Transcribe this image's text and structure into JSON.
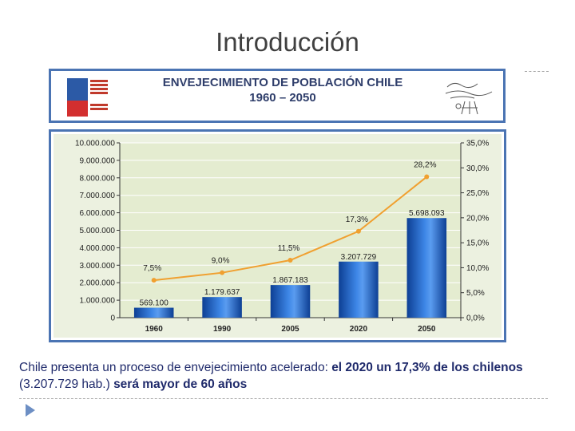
{
  "slide": {
    "title": "Introducción"
  },
  "header": {
    "title_line1": "ENVEJECIMIENTO DE POBLACIÓN CHILE",
    "title_line2": "1960 – 2050",
    "gov_logo": "government-of-chile-logo",
    "geriatria_logo": "geriatria-logo"
  },
  "chart_data": {
    "type": "bar",
    "title": "ENVEJECIMIENTO DE POBLACIÓN CHILE 1960 – 2050",
    "categories": [
      "1960",
      "1990",
      "2005",
      "2020",
      "2050"
    ],
    "series": [
      {
        "values": [
          569100,
          1179637,
          1867183,
          3207729,
          5698093
        ],
        "value_labels": [
          "569.100",
          "1.179.637",
          "1.867.183",
          "3.207.729",
          "5.698.093"
        ],
        "color": "#1f5fbf"
      },
      {
        "type": "line",
        "values": [
          7.5,
          9.0,
          11.5,
          17.3,
          28.2
        ],
        "value_labels": [
          "7,5%",
          "9,0%",
          "11,5%",
          "17,3%",
          "28,2%"
        ],
        "color": "#f0a030",
        "axis": "right"
      }
    ],
    "y_left": {
      "ylim": [
        0,
        10000000
      ],
      "tick_labels": [
        "0",
        "1.000.000",
        "2.000.000",
        "3.000.000",
        "4.000.000",
        "5.000.000",
        "6.000.000",
        "7.000.000",
        "8.000.000",
        "9.000.000",
        "10.000.000"
      ]
    },
    "y_right": {
      "ylim": [
        0,
        35
      ],
      "tick_labels": [
        "0,0%",
        "5,0%",
        "10,0%",
        "15,0%",
        "20,0%",
        "25,0%",
        "30,0%",
        "35,0%"
      ]
    },
    "grid": true,
    "plot_background": "#e4ecd0"
  },
  "caption": {
    "part1": "Chile presenta un proceso de envejecimiento acelerado: ",
    "part2": "el 2020 un 17,3% de los chilenos",
    "part3": " (3.207.729 hab.) ",
    "part4": "será mayor de 60 años"
  },
  "footer": {
    "bullet_icon": "arrow-bullet-icon"
  }
}
